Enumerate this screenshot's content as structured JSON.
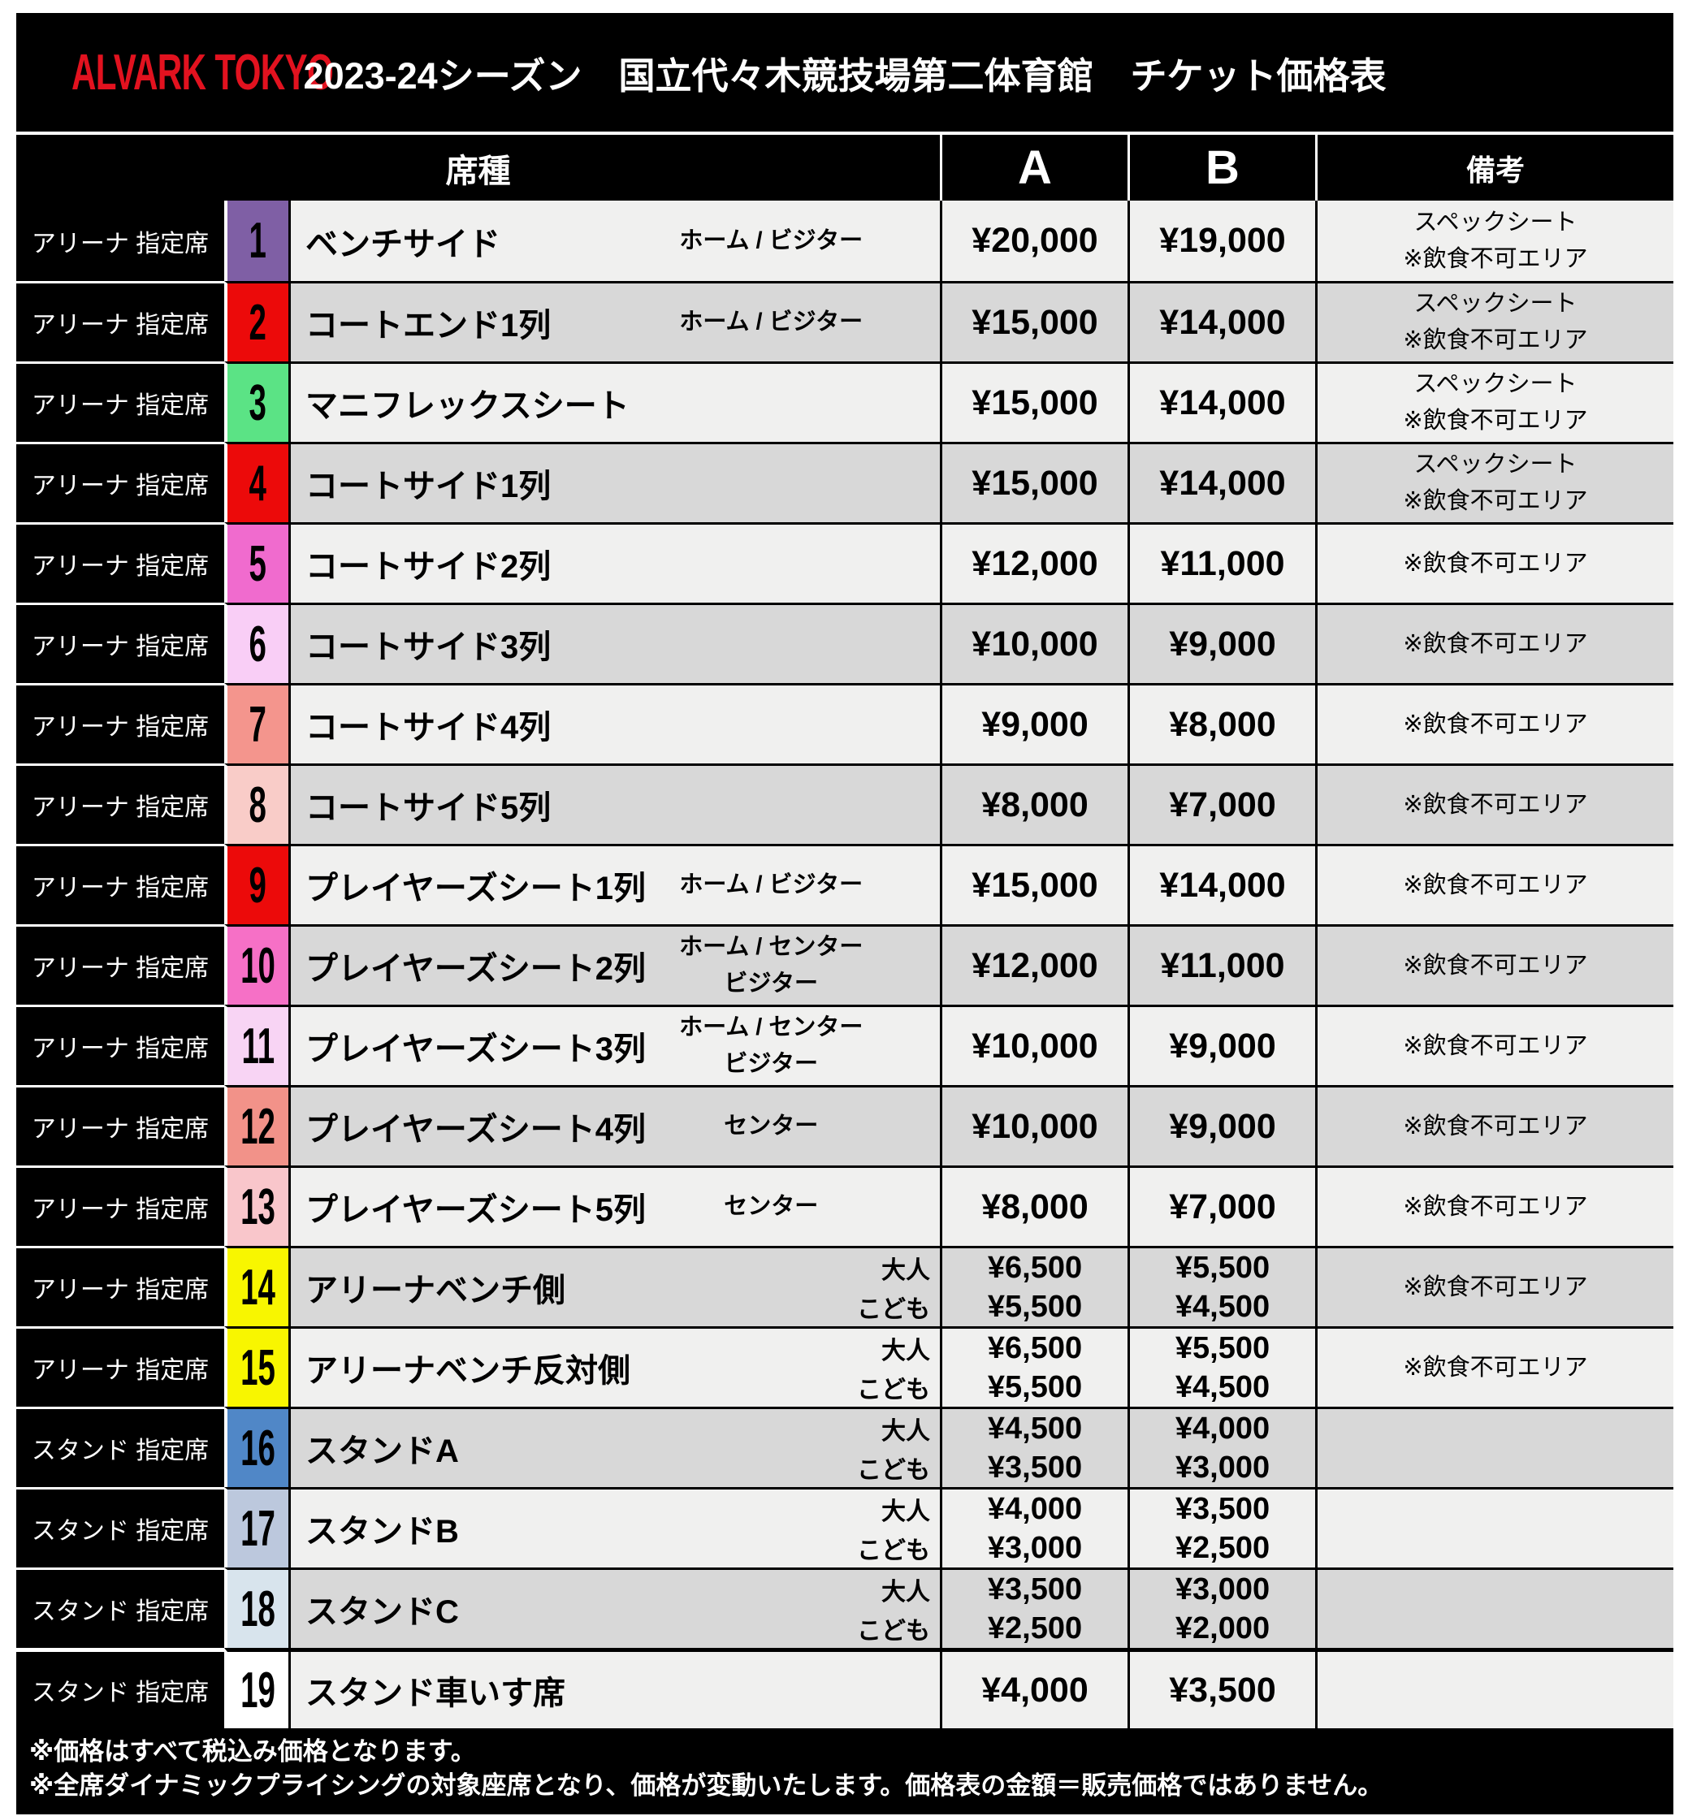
{
  "header": {
    "logo": "ALVARK TOKYO",
    "title": "2023-24シーズン　国立代々木競技場第二体育館　チケット価格表"
  },
  "columns": {
    "seat": "席種",
    "price_a": "A",
    "price_b": "B",
    "remarks": "備考"
  },
  "colors": {
    "brand_red": "#E2121F",
    "table_bg": "#000000",
    "row_light": "#F0F0EF",
    "row_dark": "#D8D8D8"
  },
  "rows": [
    {
      "no": "1",
      "area": "アリーナ 指定席",
      "badge_color": "#7F5FA5",
      "name": "ベンチサイド",
      "sub": [
        "ホーム / ビジター"
      ],
      "sub_pos": "center",
      "a": [
        "¥20,000"
      ],
      "b": [
        "¥19,000"
      ],
      "remarks": [
        "スペックシート",
        "※飲食不可エリア"
      ]
    },
    {
      "no": "2",
      "area": "アリーナ 指定席",
      "badge_color": "#EC0A0A",
      "name": "コートエンド1列",
      "sub": [
        "ホーム / ビジター"
      ],
      "sub_pos": "center",
      "a": [
        "¥15,000"
      ],
      "b": [
        "¥14,000"
      ],
      "remarks": [
        "スペックシート",
        "※飲食不可エリア"
      ]
    },
    {
      "no": "3",
      "area": "アリーナ 指定席",
      "badge_color": "#5BE385",
      "name": "マニフレックスシート",
      "sub": [],
      "sub_pos": "center",
      "a": [
        "¥15,000"
      ],
      "b": [
        "¥14,000"
      ],
      "remarks": [
        "スペックシート",
        "※飲食不可エリア"
      ]
    },
    {
      "no": "4",
      "area": "アリーナ 指定席",
      "badge_color": "#EC0A0A",
      "name": "コートサイド1列",
      "sub": [],
      "sub_pos": "center",
      "a": [
        "¥15,000"
      ],
      "b": [
        "¥14,000"
      ],
      "remarks": [
        "スペックシート",
        "※飲食不可エリア"
      ]
    },
    {
      "no": "5",
      "area": "アリーナ 指定席",
      "badge_color": "#F06BCE",
      "name": "コートサイド2列",
      "sub": [],
      "sub_pos": "center",
      "a": [
        "¥12,000"
      ],
      "b": [
        "¥11,000"
      ],
      "remarks": [
        "※飲食不可エリア"
      ]
    },
    {
      "no": "6",
      "area": "アリーナ 指定席",
      "badge_color": "#F9CEF6",
      "name": "コートサイド3列",
      "sub": [],
      "sub_pos": "center",
      "a": [
        "¥10,000"
      ],
      "b": [
        "¥9,000"
      ],
      "remarks": [
        "※飲食不可エリア"
      ]
    },
    {
      "no": "7",
      "area": "アリーナ 指定席",
      "badge_color": "#F4958D",
      "name": "コートサイド4列",
      "sub": [],
      "sub_pos": "center",
      "a": [
        "¥9,000"
      ],
      "b": [
        "¥8,000"
      ],
      "remarks": [
        "※飲食不可エリア"
      ]
    },
    {
      "no": "8",
      "area": "アリーナ 指定席",
      "badge_color": "#F9CCC8",
      "name": "コートサイド5列",
      "sub": [],
      "sub_pos": "center",
      "a": [
        "¥8,000"
      ],
      "b": [
        "¥7,000"
      ],
      "remarks": [
        "※飲食不可エリア"
      ]
    },
    {
      "no": "9",
      "area": "アリーナ 指定席",
      "badge_color": "#EC0A0A",
      "name": "プレイヤーズシート1列",
      "sub": [
        "ホーム / ビジター"
      ],
      "sub_pos": "center",
      "a": [
        "¥15,000"
      ],
      "b": [
        "¥14,000"
      ],
      "remarks": [
        "※飲食不可エリア"
      ]
    },
    {
      "no": "10",
      "area": "アリーナ 指定席",
      "badge_color": "#F670C6",
      "name": "プレイヤーズシート2列",
      "sub": [
        "ホーム / センター",
        "ビジター"
      ],
      "sub_pos": "center",
      "a": [
        "¥12,000"
      ],
      "b": [
        "¥11,000"
      ],
      "remarks": [
        "※飲食不可エリア"
      ]
    },
    {
      "no": "11",
      "area": "アリーナ 指定席",
      "badge_color": "#F8D4F4",
      "name": "プレイヤーズシート3列",
      "sub": [
        "ホーム / センター",
        "ビジター"
      ],
      "sub_pos": "center",
      "a": [
        "¥10,000"
      ],
      "b": [
        "¥9,000"
      ],
      "remarks": [
        "※飲食不可エリア"
      ]
    },
    {
      "no": "12",
      "area": "アリーナ 指定席",
      "badge_color": "#F29289",
      "name": "プレイヤーズシート4列",
      "sub": [
        "センター"
      ],
      "sub_pos": "center",
      "a": [
        "¥10,000"
      ],
      "b": [
        "¥9,000"
      ],
      "remarks": [
        "※飲食不可エリア"
      ]
    },
    {
      "no": "13",
      "area": "アリーナ 指定席",
      "badge_color": "#F9C6CB",
      "name": "プレイヤーズシート5列",
      "sub": [
        "センター"
      ],
      "sub_pos": "center",
      "a": [
        "¥8,000"
      ],
      "b": [
        "¥7,000"
      ],
      "remarks": [
        "※飲食不可エリア"
      ]
    },
    {
      "no": "14",
      "area": "アリーナ 指定席",
      "badge_color": "#F8F600",
      "name": "アリーナベンチ側",
      "sub": [
        "大人",
        "こども"
      ],
      "sub_pos": "right",
      "a": [
        "¥6,500",
        "¥5,500"
      ],
      "b": [
        "¥5,500",
        "¥4,500"
      ],
      "remarks": [
        "※飲食不可エリア"
      ]
    },
    {
      "no": "15",
      "area": "アリーナ 指定席",
      "badge_color": "#F8F600",
      "name": "アリーナベンチ反対側",
      "sub": [
        "大人",
        "こども"
      ],
      "sub_pos": "right",
      "a": [
        "¥6,500",
        "¥5,500"
      ],
      "b": [
        "¥5,500",
        "¥4,500"
      ],
      "remarks": [
        "※飲食不可エリア"
      ]
    },
    {
      "no": "16",
      "area": "スタンド 指定席",
      "badge_color": "#5087C7",
      "name": "スタンドA",
      "sub": [
        "大人",
        "こども"
      ],
      "sub_pos": "right",
      "a": [
        "¥4,500",
        "¥3,500"
      ],
      "b": [
        "¥4,000",
        "¥3,000"
      ],
      "remarks": []
    },
    {
      "no": "17",
      "area": "スタンド 指定席",
      "badge_color": "#BCC8DD",
      "name": "スタンドB",
      "sub": [
        "大人",
        "こども"
      ],
      "sub_pos": "right",
      "a": [
        "¥4,000",
        "¥3,000"
      ],
      "b": [
        "¥3,500",
        "¥2,500"
      ],
      "remarks": []
    },
    {
      "no": "18",
      "area": "スタンド 指定席",
      "badge_color": "#D8E4ED",
      "name": "スタンドC",
      "sub": [
        "大人",
        "こども"
      ],
      "sub_pos": "right",
      "a": [
        "¥3,500",
        "¥2,500"
      ],
      "b": [
        "¥3,000",
        "¥2,000"
      ],
      "remarks": []
    },
    {
      "no": "19",
      "area": "スタンド 指定席",
      "badge_color": "#FFFFFF",
      "name": "スタンド車いす席",
      "sub": [],
      "sub_pos": "center",
      "a": [
        "¥4,000"
      ],
      "b": [
        "¥3,500"
      ],
      "remarks": [],
      "thick_top": true
    }
  ],
  "footer": {
    "notes": [
      "※価格はすべて税込み価格となります。",
      "※全席ダイナミックプライシングの対象座席となり、価格が変動いたします。価格表の金額＝販売価格ではありません。"
    ]
  }
}
